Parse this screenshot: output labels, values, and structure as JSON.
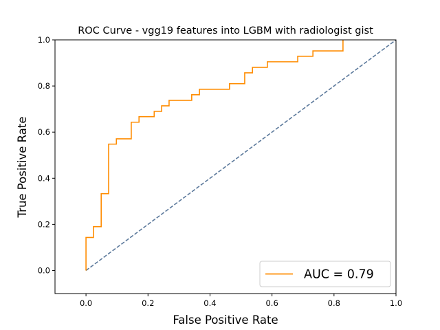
{
  "chart_data": {
    "type": "line",
    "title": "ROC Curve - vgg19 features into LGBM with radiologist gist",
    "xlabel": "False Positive Rate",
    "ylabel": "True Positive Rate",
    "xlim": [
      -0.1,
      1.0
    ],
    "ylim": [
      -0.1,
      1.0
    ],
    "xticks": [
      0.0,
      0.2,
      0.4,
      0.6,
      0.8,
      1.0
    ],
    "yticks": [
      0.0,
      0.2,
      0.4,
      0.6,
      0.8,
      1.0
    ],
    "grid": false,
    "legend_position": "lower-right",
    "series": [
      {
        "name": "AUC = 0.79",
        "color": "#ff8c00",
        "style": "solid",
        "x": [
          0.0,
          0.0,
          0.024,
          0.024,
          0.049,
          0.049,
          0.073,
          0.073,
          0.098,
          0.098,
          0.146,
          0.146,
          0.171,
          0.171,
          0.22,
          0.22,
          0.244,
          0.244,
          0.268,
          0.268,
          0.341,
          0.341,
          0.366,
          0.366,
          0.463,
          0.463,
          0.512,
          0.512,
          0.537,
          0.537,
          0.585,
          0.585,
          0.683,
          0.683,
          0.732,
          0.732,
          0.829,
          0.829
        ],
        "y": [
          0.0,
          0.143,
          0.143,
          0.19,
          0.19,
          0.333,
          0.333,
          0.548,
          0.548,
          0.571,
          0.571,
          0.643,
          0.643,
          0.667,
          0.667,
          0.69,
          0.69,
          0.714,
          0.714,
          0.738,
          0.738,
          0.762,
          0.762,
          0.786,
          0.786,
          0.81,
          0.81,
          0.857,
          0.857,
          0.881,
          0.881,
          0.905,
          0.905,
          0.929,
          0.929,
          0.952,
          0.952,
          1.0
        ]
      },
      {
        "name": "",
        "color": "#5d7a9c",
        "style": "dashed",
        "x": [
          0.0,
          1.0
        ],
        "y": [
          0.0,
          1.0
        ]
      }
    ]
  }
}
